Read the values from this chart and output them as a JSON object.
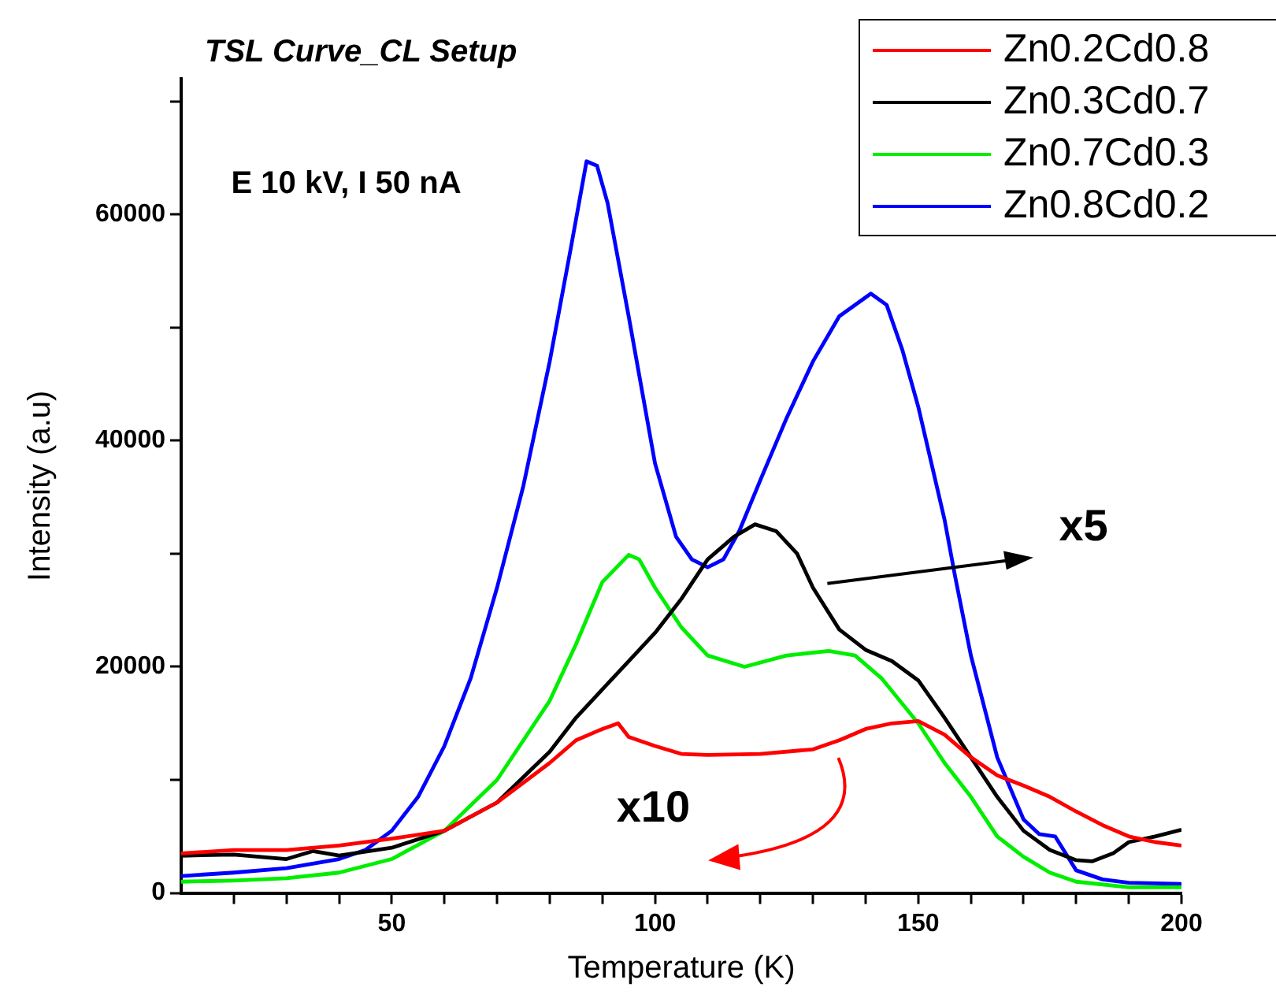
{
  "chart_data": {
    "type": "line",
    "title": "TSL Curve_CL Setup",
    "xlabel": "Temperature (K)",
    "ylabel": "Intensity (a.u)",
    "xlim": [
      10,
      200
    ],
    "ylim": [
      0,
      72000
    ],
    "xticks": [
      {
        "value": 20,
        "label": null
      },
      {
        "value": 30,
        "label": null
      },
      {
        "value": 40,
        "label": null
      },
      50,
      {
        "value": 60,
        "label": null
      },
      {
        "value": 70,
        "label": null
      },
      {
        "value": 80,
        "label": null
      },
      {
        "value": 90,
        "label": null
      },
      100,
      {
        "value": 110,
        "label": null
      },
      {
        "value": 120,
        "label": null
      },
      {
        "value": 130,
        "label": null
      },
      {
        "value": 140,
        "label": null
      },
      150,
      {
        "value": 160,
        "label": null
      },
      {
        "value": 170,
        "label": null
      },
      {
        "value": 180,
        "label": null
      },
      {
        "value": 190,
        "label": null
      },
      200
    ],
    "yticks": [
      0,
      {
        "value": 10000,
        "label": null
      },
      20000,
      {
        "value": 30000,
        "label": null
      },
      40000,
      {
        "value": 50000,
        "label": null
      },
      60000,
      {
        "value": 70000,
        "label": null
      }
    ],
    "grid": false,
    "legend": "top right",
    "marker": "none",
    "line_style": "solid",
    "annotations": [
      "E 10 kV, I 50 nA",
      "x5",
      "x10"
    ],
    "series": [
      {
        "name": "Zn0.2Cd0.8",
        "color": "#ff0000",
        "x": [
          10,
          20,
          30,
          40,
          50,
          60,
          70,
          80,
          85,
          90,
          93,
          95,
          100,
          105,
          110,
          120,
          130,
          135,
          140,
          145,
          150,
          155,
          160,
          165,
          170,
          175,
          180,
          185,
          190,
          195,
          200
        ],
        "values": [
          3500,
          3800,
          3800,
          4200,
          4800,
          5500,
          8000,
          11500,
          13500,
          14500,
          15000,
          13800,
          13000,
          12300,
          12200,
          12300,
          12700,
          13500,
          14500,
          15000,
          15200,
          14000,
          12000,
          10400,
          9500,
          8500,
          7200,
          6000,
          5000,
          4500,
          4200
        ]
      },
      {
        "name": "Zn0.3Cd0.7",
        "color": "#000000",
        "x": [
          10,
          20,
          30,
          35,
          40,
          50,
          60,
          70,
          80,
          85,
          90,
          95,
          100,
          105,
          110,
          115,
          119,
          123,
          127,
          130,
          135,
          140,
          145,
          150,
          155,
          160,
          165,
          170,
          175,
          180,
          183,
          187,
          190,
          195,
          200
        ],
        "values": [
          3300,
          3400,
          3000,
          3700,
          3300,
          4000,
          5500,
          8000,
          12500,
          15500,
          18000,
          20500,
          23000,
          26000,
          29500,
          31500,
          32600,
          32000,
          30000,
          27000,
          23300,
          21500,
          20500,
          18800,
          15500,
          12000,
          8500,
          5500,
          3800,
          2900,
          2800,
          3500,
          4500,
          5000,
          5600
        ]
      },
      {
        "name": "Zn0.7Cd0.3",
        "color": "#00ee00",
        "x": [
          10,
          20,
          30,
          40,
          50,
          60,
          70,
          80,
          85,
          90,
          95,
          97,
          100,
          105,
          110,
          117,
          125,
          133,
          138,
          143,
          150,
          155,
          160,
          165,
          170,
          175,
          180,
          190,
          200
        ],
        "values": [
          1000,
          1100,
          1300,
          1800,
          3000,
          5500,
          10000,
          17000,
          22000,
          27500,
          29900,
          29500,
          27000,
          23500,
          21000,
          20000,
          21000,
          21400,
          21000,
          19000,
          15000,
          11500,
          8500,
          5000,
          3200,
          1800,
          1000,
          500,
          500
        ]
      },
      {
        "name": "Zn0.8Cd0.2",
        "color": "#0000ff",
        "x": [
          10,
          20,
          30,
          40,
          45,
          50,
          55,
          60,
          65,
          70,
          75,
          80,
          84,
          87,
          89,
          91,
          95,
          100,
          104,
          107,
          110,
          113,
          116,
          120,
          125,
          130,
          135,
          141,
          144,
          147,
          150,
          155,
          157,
          160,
          165,
          170,
          173,
          176,
          178,
          180,
          185,
          190,
          200
        ],
        "values": [
          1500,
          1800,
          2200,
          3000,
          3800,
          5500,
          8500,
          13000,
          19000,
          27000,
          36000,
          47000,
          57000,
          64700,
          64300,
          61000,
          51000,
          38000,
          31500,
          29500,
          28800,
          29500,
          32000,
          36500,
          42000,
          47000,
          51000,
          53000,
          52000,
          48000,
          43000,
          33000,
          28000,
          21000,
          12000,
          6500,
          5200,
          5000,
          3500,
          2000,
          1200,
          900,
          800
        ]
      }
    ]
  }
}
